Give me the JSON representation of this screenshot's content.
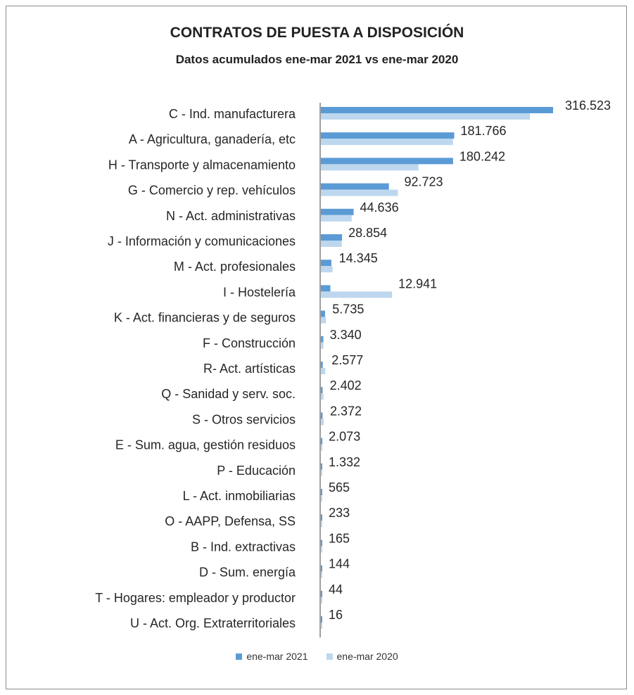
{
  "title": "CONTRATOS DE PUESTA A DISPOSICIÓN",
  "subtitle": "Datos acumulados  ene-mar 2021 vs ene-mar 2020",
  "colors": {
    "series_2021": "#5b9bd5",
    "series_2020": "#bdd7ee",
    "axis": "#404040"
  },
  "chart_data": {
    "type": "bar",
    "orientation": "horizontal",
    "title": "CONTRATOS DE PUESTA A DISPOSICIÓN",
    "subtitle": "Datos acumulados  ene-mar 2021 vs ene-mar 2020",
    "categories": [
      "C - Ind. manufacturera",
      "A - Agricultura, ganadería, etc",
      "H - Transporte y almacenamiento",
      "G - Comercio y rep. vehículos",
      "N - Act. administrativas",
      "J - Información y comunicaciones",
      "M - Act. profesionales",
      "I - Hostelería",
      "K - Act. financieras y de seguros",
      "F - Construcción",
      "R-  Act. artísticas",
      "Q - Sanidad y serv. soc.",
      "S - Otros servicios",
      "E - Sum. agua, gestión residuos",
      "P - Educación",
      "L - Act. inmobiliarias",
      "O - AAPP, Defensa, SS",
      "B - Ind. extractivas",
      "D - Sum. energía",
      "T - Hogares: empleador y productor",
      "U - Act. Org. Extraterritoriales"
    ],
    "value_labels": [
      "316.523",
      "181.766",
      "180.242",
      "92.723",
      "44.636",
      "28.854",
      "14.345",
      "12.941",
      "5.735",
      "3.340",
      "2.577",
      "2.402",
      "2.372",
      "2.073",
      "1.332",
      "565",
      "233",
      "165",
      "144",
      "44",
      "16"
    ],
    "series": [
      {
        "name": "ene-mar 2021",
        "values": [
          316523,
          181766,
          180242,
          92723,
          44636,
          28854,
          14345,
          12941,
          5735,
          3340,
          2577,
          2402,
          2372,
          2073,
          1332,
          565,
          233,
          165,
          144,
          44,
          16
        ]
      },
      {
        "name": "ene-mar 2020",
        "values": [
          285000,
          180000,
          133000,
          105000,
          42000,
          28500,
          16000,
          97000,
          7000,
          3500,
          6000,
          3500,
          3800,
          2000,
          1500,
          700,
          2000,
          1500,
          1200,
          200,
          100
        ]
      }
    ],
    "xlim": [
      0,
      316523
    ],
    "grid": false,
    "legend": "bottom"
  }
}
